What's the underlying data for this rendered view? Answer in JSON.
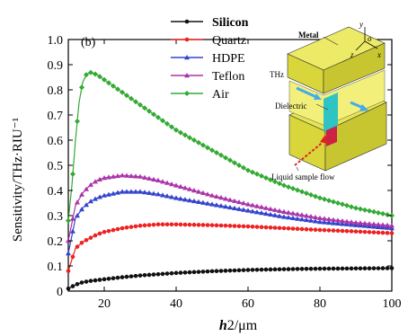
{
  "panel_label": "(b)",
  "chart_data": {
    "type": "line",
    "xlabel_italic": "h",
    "xlabel_rest": "2/μm",
    "ylabel": "Sensitivity/THz·RIU⁻¹",
    "xlim": [
      10,
      100
    ],
    "ylim": [
      0,
      1.0
    ],
    "x_ticks": [
      20,
      40,
      60,
      80,
      100
    ],
    "y_ticks": [
      0,
      0.1,
      0.2,
      0.3,
      0.4,
      0.5,
      0.6,
      0.7,
      0.8,
      0.9,
      1.0
    ],
    "y_tick_labels": [
      "0",
      "0.1",
      "0.2",
      "0.3",
      "0.4",
      "0.5",
      "0.6",
      "0.7",
      "0.8",
      "0.9",
      "1.0"
    ],
    "legend_position": "top-center",
    "series": [
      {
        "name": "Silicon",
        "color": "#111111",
        "marker": "circle",
        "x": [
          10,
          12,
          14,
          16,
          20,
          25,
          30,
          40,
          50,
          60,
          70,
          80,
          90,
          100
        ],
        "y": [
          0.01,
          0.025,
          0.035,
          0.04,
          0.047,
          0.055,
          0.062,
          0.072,
          0.079,
          0.084,
          0.087,
          0.089,
          0.09,
          0.091
        ]
      },
      {
        "name": "Quartz",
        "color": "#ee2222",
        "marker": "circle",
        "x": [
          10,
          12,
          14,
          16,
          18,
          20,
          25,
          30,
          35,
          40,
          50,
          60,
          70,
          80,
          90,
          100
        ],
        "y": [
          0.08,
          0.17,
          0.195,
          0.21,
          0.225,
          0.235,
          0.25,
          0.26,
          0.265,
          0.265,
          0.262,
          0.257,
          0.25,
          0.243,
          0.237,
          0.23
        ]
      },
      {
        "name": "HDPE",
        "color": "#3344cc",
        "marker": "triangle",
        "x": [
          10,
          12,
          14,
          16,
          18,
          20,
          25,
          30,
          35,
          40,
          50,
          60,
          70,
          80,
          90,
          100
        ],
        "y": [
          0.15,
          0.29,
          0.33,
          0.355,
          0.37,
          0.38,
          0.395,
          0.395,
          0.385,
          0.37,
          0.345,
          0.32,
          0.295,
          0.275,
          0.262,
          0.25
        ]
      },
      {
        "name": "Teflon",
        "color": "#aa33aa",
        "marker": "triangle",
        "x": [
          10,
          12,
          14,
          16,
          18,
          20,
          25,
          30,
          35,
          40,
          50,
          60,
          70,
          80,
          90,
          100
        ],
        "y": [
          0.2,
          0.34,
          0.39,
          0.42,
          0.44,
          0.45,
          0.46,
          0.455,
          0.44,
          0.42,
          0.38,
          0.345,
          0.315,
          0.29,
          0.272,
          0.26
        ]
      },
      {
        "name": "Air",
        "color": "#33aa33",
        "marker": "diamond",
        "x": [
          10,
          11,
          12,
          13,
          14,
          15,
          16,
          18,
          20,
          25,
          30,
          35,
          40,
          50,
          60,
          70,
          80,
          90,
          100
        ],
        "y": [
          0.28,
          0.42,
          0.6,
          0.75,
          0.83,
          0.86,
          0.87,
          0.86,
          0.84,
          0.79,
          0.74,
          0.69,
          0.64,
          0.56,
          0.48,
          0.42,
          0.37,
          0.33,
          0.3
        ]
      }
    ]
  },
  "inset": {
    "label_metal": "Metal",
    "label_thz": "THz",
    "label_dielectric": "Dielectric",
    "label_flow": "Liquid sample flow",
    "axis_y": "y",
    "axis_o": "o",
    "axis_z": "z",
    "axis_x": "x"
  }
}
